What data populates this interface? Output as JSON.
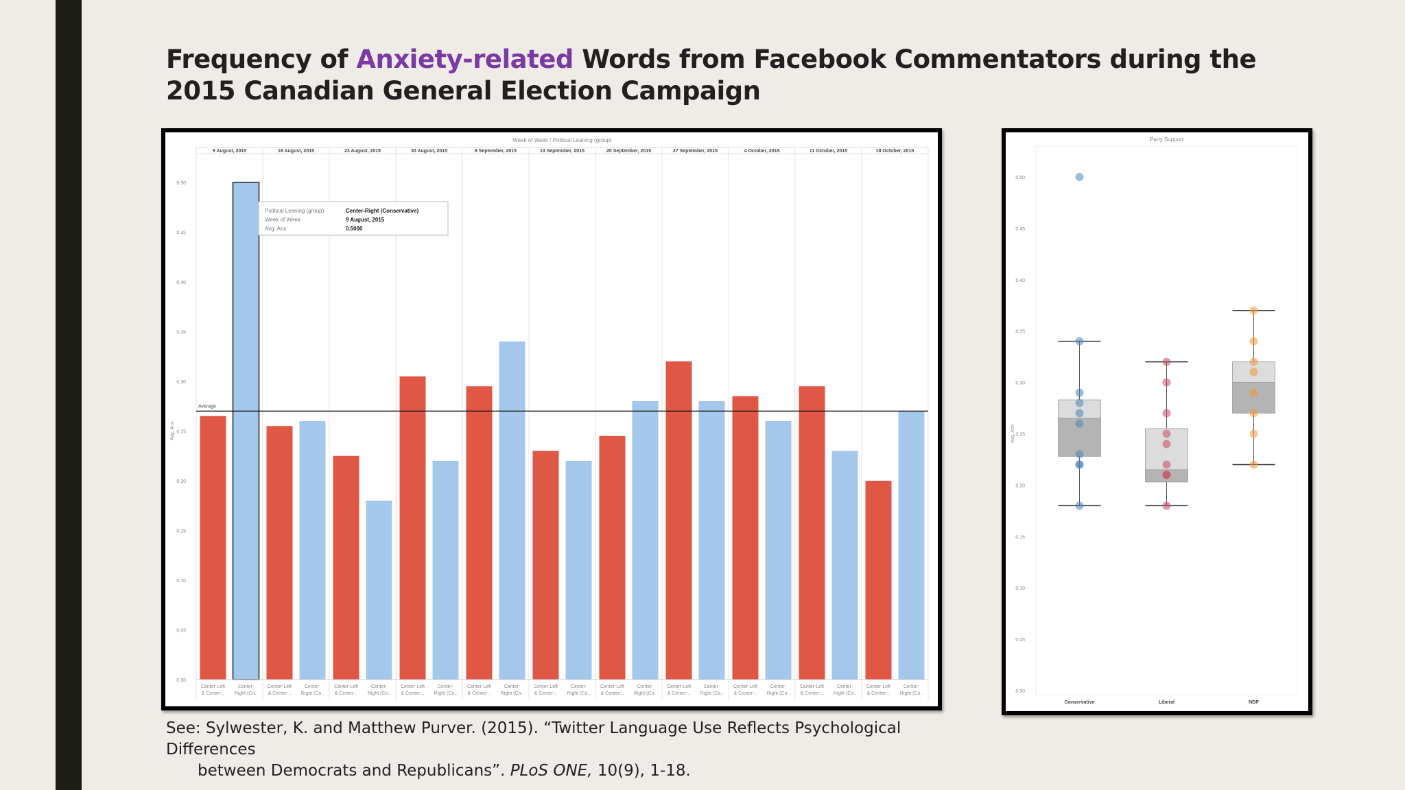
{
  "slide": {
    "title_pre": "Frequency of ",
    "title_highlight": "Anxiety-related",
    "title_post": " Words from Facebook Commentators during the 2015 Canadian General Election Campaign",
    "citation_line1_pre": "See: Sylwester, K. and Matthew Purver. (2015). “Twitter Language Use Reflects Psychological Differences",
    "citation_line2_pre": "between Democrats and Republicans”. ",
    "citation_journal": "PLoS ONE,",
    "citation_line2_post": " 10(9), 1-18.",
    "highlight_color": "#7a3aa3"
  },
  "chart_data": [
    {
      "type": "bar",
      "title": "Week of Week / Political Leaning (group)",
      "ylabel": "Avg. Anx",
      "ylim": [
        0,
        0.5
      ],
      "yticks": [
        "0.00",
        "0.05",
        "0.10",
        "0.15",
        "0.20",
        "0.25",
        "0.30",
        "0.35",
        "0.40",
        "0.45",
        "0.50"
      ],
      "weeks": [
        "9 August, 2015",
        "16 August, 2015",
        "23 August, 2015",
        "30 August, 2015",
        "6 September, 2015",
        "13 September, 2015",
        "20 September, 2015",
        "27 September, 2015",
        "4 October, 2015",
        "11 October, 2015",
        "18 October, 2015"
      ],
      "category_labels": [
        [
          "Center-Left",
          "& Center-.."
        ],
        [
          "Center-",
          "Right (Co.."
        ]
      ],
      "series": [
        {
          "name": "Center-Left & Center-..",
          "color": "#e15745",
          "values": [
            0.265,
            0.255,
            0.225,
            0.305,
            0.295,
            0.23,
            0.245,
            0.32,
            0.285,
            0.295,
            0.2
          ]
        },
        {
          "name": "Center-Right (Co..",
          "color": "#a4c8ec",
          "values": [
            0.5,
            0.26,
            0.18,
            0.22,
            0.34,
            0.22,
            0.28,
            0.28,
            0.26,
            0.23,
            0.27
          ]
        }
      ],
      "reference_line": {
        "label": "Average",
        "value": 0.27
      },
      "tooltip": {
        "rows": [
          {
            "key": "Political Leaning (group):",
            "value": "Center-Right (Conservative)"
          },
          {
            "key": "Week of Week:",
            "value": "9 August, 2015"
          },
          {
            "key": "Avg. Anx:",
            "value": "0.5000"
          }
        ]
      },
      "grid": false,
      "highlighted": {
        "week_index": 0,
        "series_index": 1
      }
    },
    {
      "type": "box",
      "title": "Party Support",
      "ylabel": "Avg. Anx",
      "ylim": [
        0,
        0.5
      ],
      "yticks": [
        "0.00",
        "0.05",
        "0.10",
        "0.15",
        "0.20",
        "0.25",
        "0.30",
        "0.35",
        "0.40",
        "0.45",
        "0.50"
      ],
      "categories": [
        "Conservative",
        "Liberal",
        "NDP"
      ],
      "colors": [
        "#4a86b8",
        "#c84a5e",
        "#ef9a33"
      ],
      "boxes": [
        {
          "min": 0.18,
          "q1": 0.228,
          "median": 0.265,
          "q3": 0.283,
          "max": 0.34,
          "points": [
            0.5,
            0.34,
            0.29,
            0.28,
            0.27,
            0.26,
            0.23,
            0.22,
            0.22,
            0.18
          ]
        },
        {
          "min": 0.18,
          "q1": 0.203,
          "median": 0.215,
          "q3": 0.255,
          "max": 0.32,
          "points": [
            0.32,
            0.3,
            0.27,
            0.25,
            0.24,
            0.22,
            0.21,
            0.21,
            0.18
          ]
        },
        {
          "min": 0.22,
          "q1": 0.27,
          "median": 0.3,
          "q3": 0.32,
          "max": 0.37,
          "points": [
            0.37,
            0.34,
            0.32,
            0.31,
            0.29,
            0.27,
            0.25,
            0.22
          ]
        }
      ]
    }
  ]
}
